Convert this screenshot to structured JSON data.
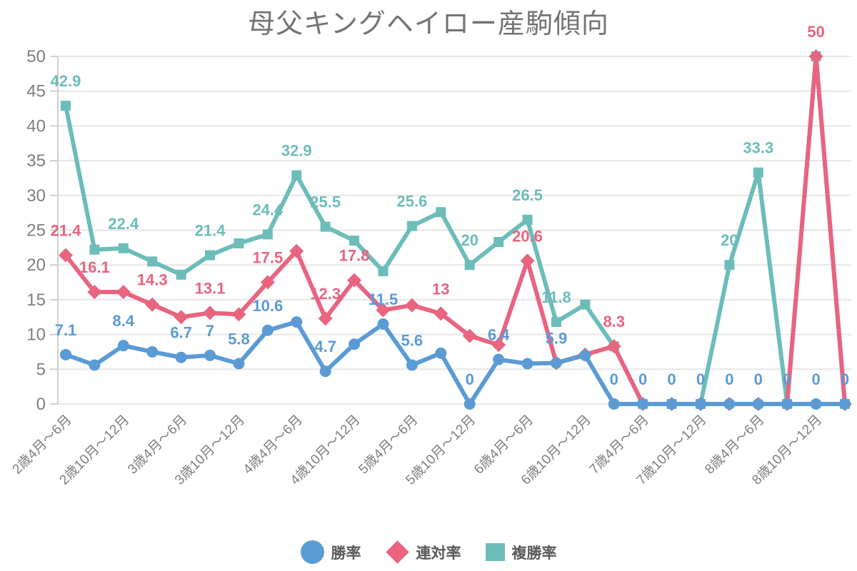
{
  "title": "母父キングヘイロー産駒傾向",
  "colors": {
    "background": "#ffffff",
    "grid": "#e6e6e6",
    "axis": "#cfcfcf",
    "tick_text": "#7f7f7f",
    "title_text": "#737373",
    "legend_text": "#595959"
  },
  "chart_data": {
    "type": "line",
    "title": "母父キングヘイロー産駒傾向",
    "grid": "horizontal",
    "legend_position": "bottom",
    "x_axis": {
      "tick_labels": [
        "2歳4月～6月",
        "2歳10月～12月",
        "3歳4月～6月",
        "3歳10月～12月",
        "4歳4月～6月",
        "4歳10月～12月",
        "5歳4月～6月",
        "5歳10月～12月",
        "6歳4月～6月",
        "6歳10月～12月",
        "7歳4月～6月",
        "7歳10月～12月",
        "8歳4月～6月",
        "8歳10月～12月"
      ],
      "tick_every": 2,
      "n_points": 28,
      "label_rotation_deg": -45
    },
    "y_axis": {
      "min": 0,
      "max": 50,
      "tick_step": 5,
      "ticks": [
        0,
        5,
        10,
        15,
        20,
        25,
        30,
        35,
        40,
        45,
        50
      ]
    },
    "series": [
      {
        "id": "win-rate",
        "name": "勝率",
        "marker": "circle",
        "color": "#5b9bd5",
        "values": [
          7.1,
          5.6,
          8.4,
          7.5,
          6.7,
          7,
          5.8,
          10.6,
          11.8,
          4.7,
          8.6,
          11.5,
          5.6,
          7.3,
          0,
          6.4,
          5.8,
          5.9,
          7,
          0,
          0,
          0,
          0,
          0,
          0,
          0,
          0,
          0
        ],
        "point_labels": [
          "7.1",
          null,
          "8.4",
          null,
          "6.7",
          "7",
          "5.8",
          "10.6",
          null,
          "4.7",
          null,
          "11.5",
          "5.6",
          null,
          "0",
          "6.4",
          null,
          "5.9",
          null,
          "0",
          "0",
          "0",
          "0",
          "0",
          "0",
          "0",
          "0",
          "0"
        ]
      },
      {
        "id": "quinella-rate",
        "name": "連対率",
        "marker": "diamond",
        "color": "#e8647f",
        "values": [
          21.4,
          16.1,
          16.1,
          14.3,
          12.5,
          13.1,
          12.9,
          17.5,
          22,
          12.3,
          17.8,
          13.5,
          14.2,
          13,
          9.8,
          8.5,
          20.6,
          5.9,
          7.1,
          8.3,
          0,
          0,
          0,
          0,
          0,
          0,
          50,
          0
        ],
        "point_labels": [
          "21.4",
          "16.1",
          null,
          "14.3",
          null,
          "13.1",
          null,
          "17.5",
          null,
          "12.3",
          "17.8",
          null,
          null,
          "13",
          null,
          null,
          "20.6",
          null,
          null,
          "8.3",
          null,
          null,
          null,
          null,
          null,
          null,
          "50",
          null
        ]
      },
      {
        "id": "show-rate",
        "name": "複勝率",
        "marker": "square",
        "color": "#6cbdb9",
        "values": [
          42.9,
          22.2,
          22.4,
          20.5,
          18.6,
          21.4,
          23.1,
          24.4,
          32.9,
          25.5,
          23.5,
          19.1,
          25.6,
          27.6,
          20,
          23.3,
          26.5,
          11.8,
          14.3,
          8.3,
          0,
          0,
          0,
          20,
          33.3,
          0,
          50,
          0
        ],
        "point_labels": [
          "42.9",
          null,
          "22.4",
          null,
          null,
          "21.4",
          null,
          "24.4",
          "32.9",
          "25.5",
          null,
          null,
          "25.6",
          null,
          "20",
          null,
          "26.5",
          "11.8",
          null,
          null,
          null,
          null,
          null,
          "20",
          "33.3",
          null,
          null,
          null
        ]
      }
    ]
  }
}
